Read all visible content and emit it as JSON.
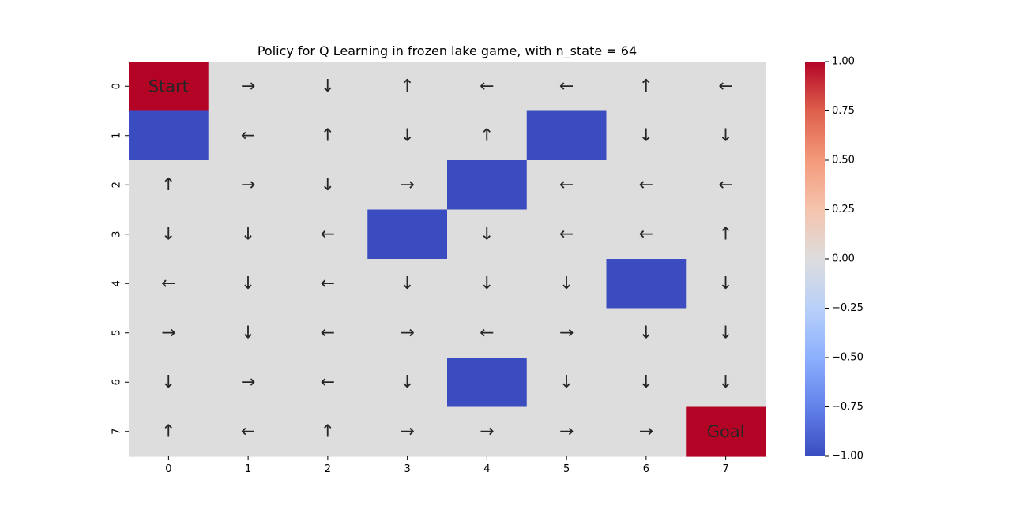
{
  "chart_data": {
    "type": "heatmap",
    "title": "Policy for Q Learning in frozen lake game, with n_state = 64",
    "xlabel": "",
    "ylabel": "",
    "x_ticks": [
      "0",
      "1",
      "2",
      "3",
      "4",
      "5",
      "6",
      "7"
    ],
    "y_ticks": [
      "0",
      "1",
      "2",
      "3",
      "4",
      "5",
      "6",
      "7"
    ],
    "values": [
      [
        1,
        0,
        0,
        0,
        0,
        0,
        0,
        0
      ],
      [
        -1,
        0,
        0,
        0,
        0,
        -1,
        0,
        0
      ],
      [
        0,
        0,
        0,
        0,
        -1,
        0,
        0,
        0
      ],
      [
        0,
        0,
        0,
        -1,
        0,
        0,
        0,
        0
      ],
      [
        0,
        0,
        0,
        0,
        0,
        0,
        -1,
        0
      ],
      [
        0,
        0,
        0,
        0,
        0,
        0,
        0,
        0
      ],
      [
        0,
        0,
        0,
        0,
        -1,
        0,
        0,
        0
      ],
      [
        0,
        0,
        0,
        0,
        0,
        0,
        0,
        1
      ]
    ],
    "annotations": [
      [
        "Start",
        "→",
        "↓",
        "↑",
        "←",
        "←",
        "↑",
        "←"
      ],
      [
        "",
        "←",
        "↑",
        "↓",
        "↑",
        "",
        "↓",
        "↓"
      ],
      [
        "↑",
        "→",
        "↓",
        "→",
        "",
        "←",
        "←",
        "←"
      ],
      [
        "↓",
        "↓",
        "←",
        "",
        "↓",
        "←",
        "←",
        "↑"
      ],
      [
        "←",
        "↓",
        "←",
        "↓",
        "↓",
        "↓",
        "",
        "↓"
      ],
      [
        "→",
        "↓",
        "←",
        "→",
        "←",
        "→",
        "↓",
        "↓"
      ],
      [
        "↓",
        "→",
        "←",
        "↓",
        "",
        "↓",
        "↓",
        "↓"
      ],
      [
        "↑",
        "←",
        "↑",
        "→",
        "→",
        "→",
        "→",
        "Goal"
      ]
    ],
    "colormap": "coolwarm",
    "colors": {
      "min": "#3b4cc0",
      "center": "#dddddd",
      "max": "#b40426"
    },
    "vmin": -1,
    "vmax": 1,
    "colorbar": {
      "ticks": [
        1.0,
        0.75,
        0.5,
        0.25,
        0.0,
        -0.25,
        -0.5,
        -0.75,
        -1.0
      ],
      "tick_labels": [
        "1.00",
        "0.75",
        "0.50",
        "0.25",
        "0.00",
        "−0.25",
        "−0.50",
        "−0.75",
        "−1.00"
      ]
    },
    "grid": false,
    "legend": "colorbar right"
  }
}
